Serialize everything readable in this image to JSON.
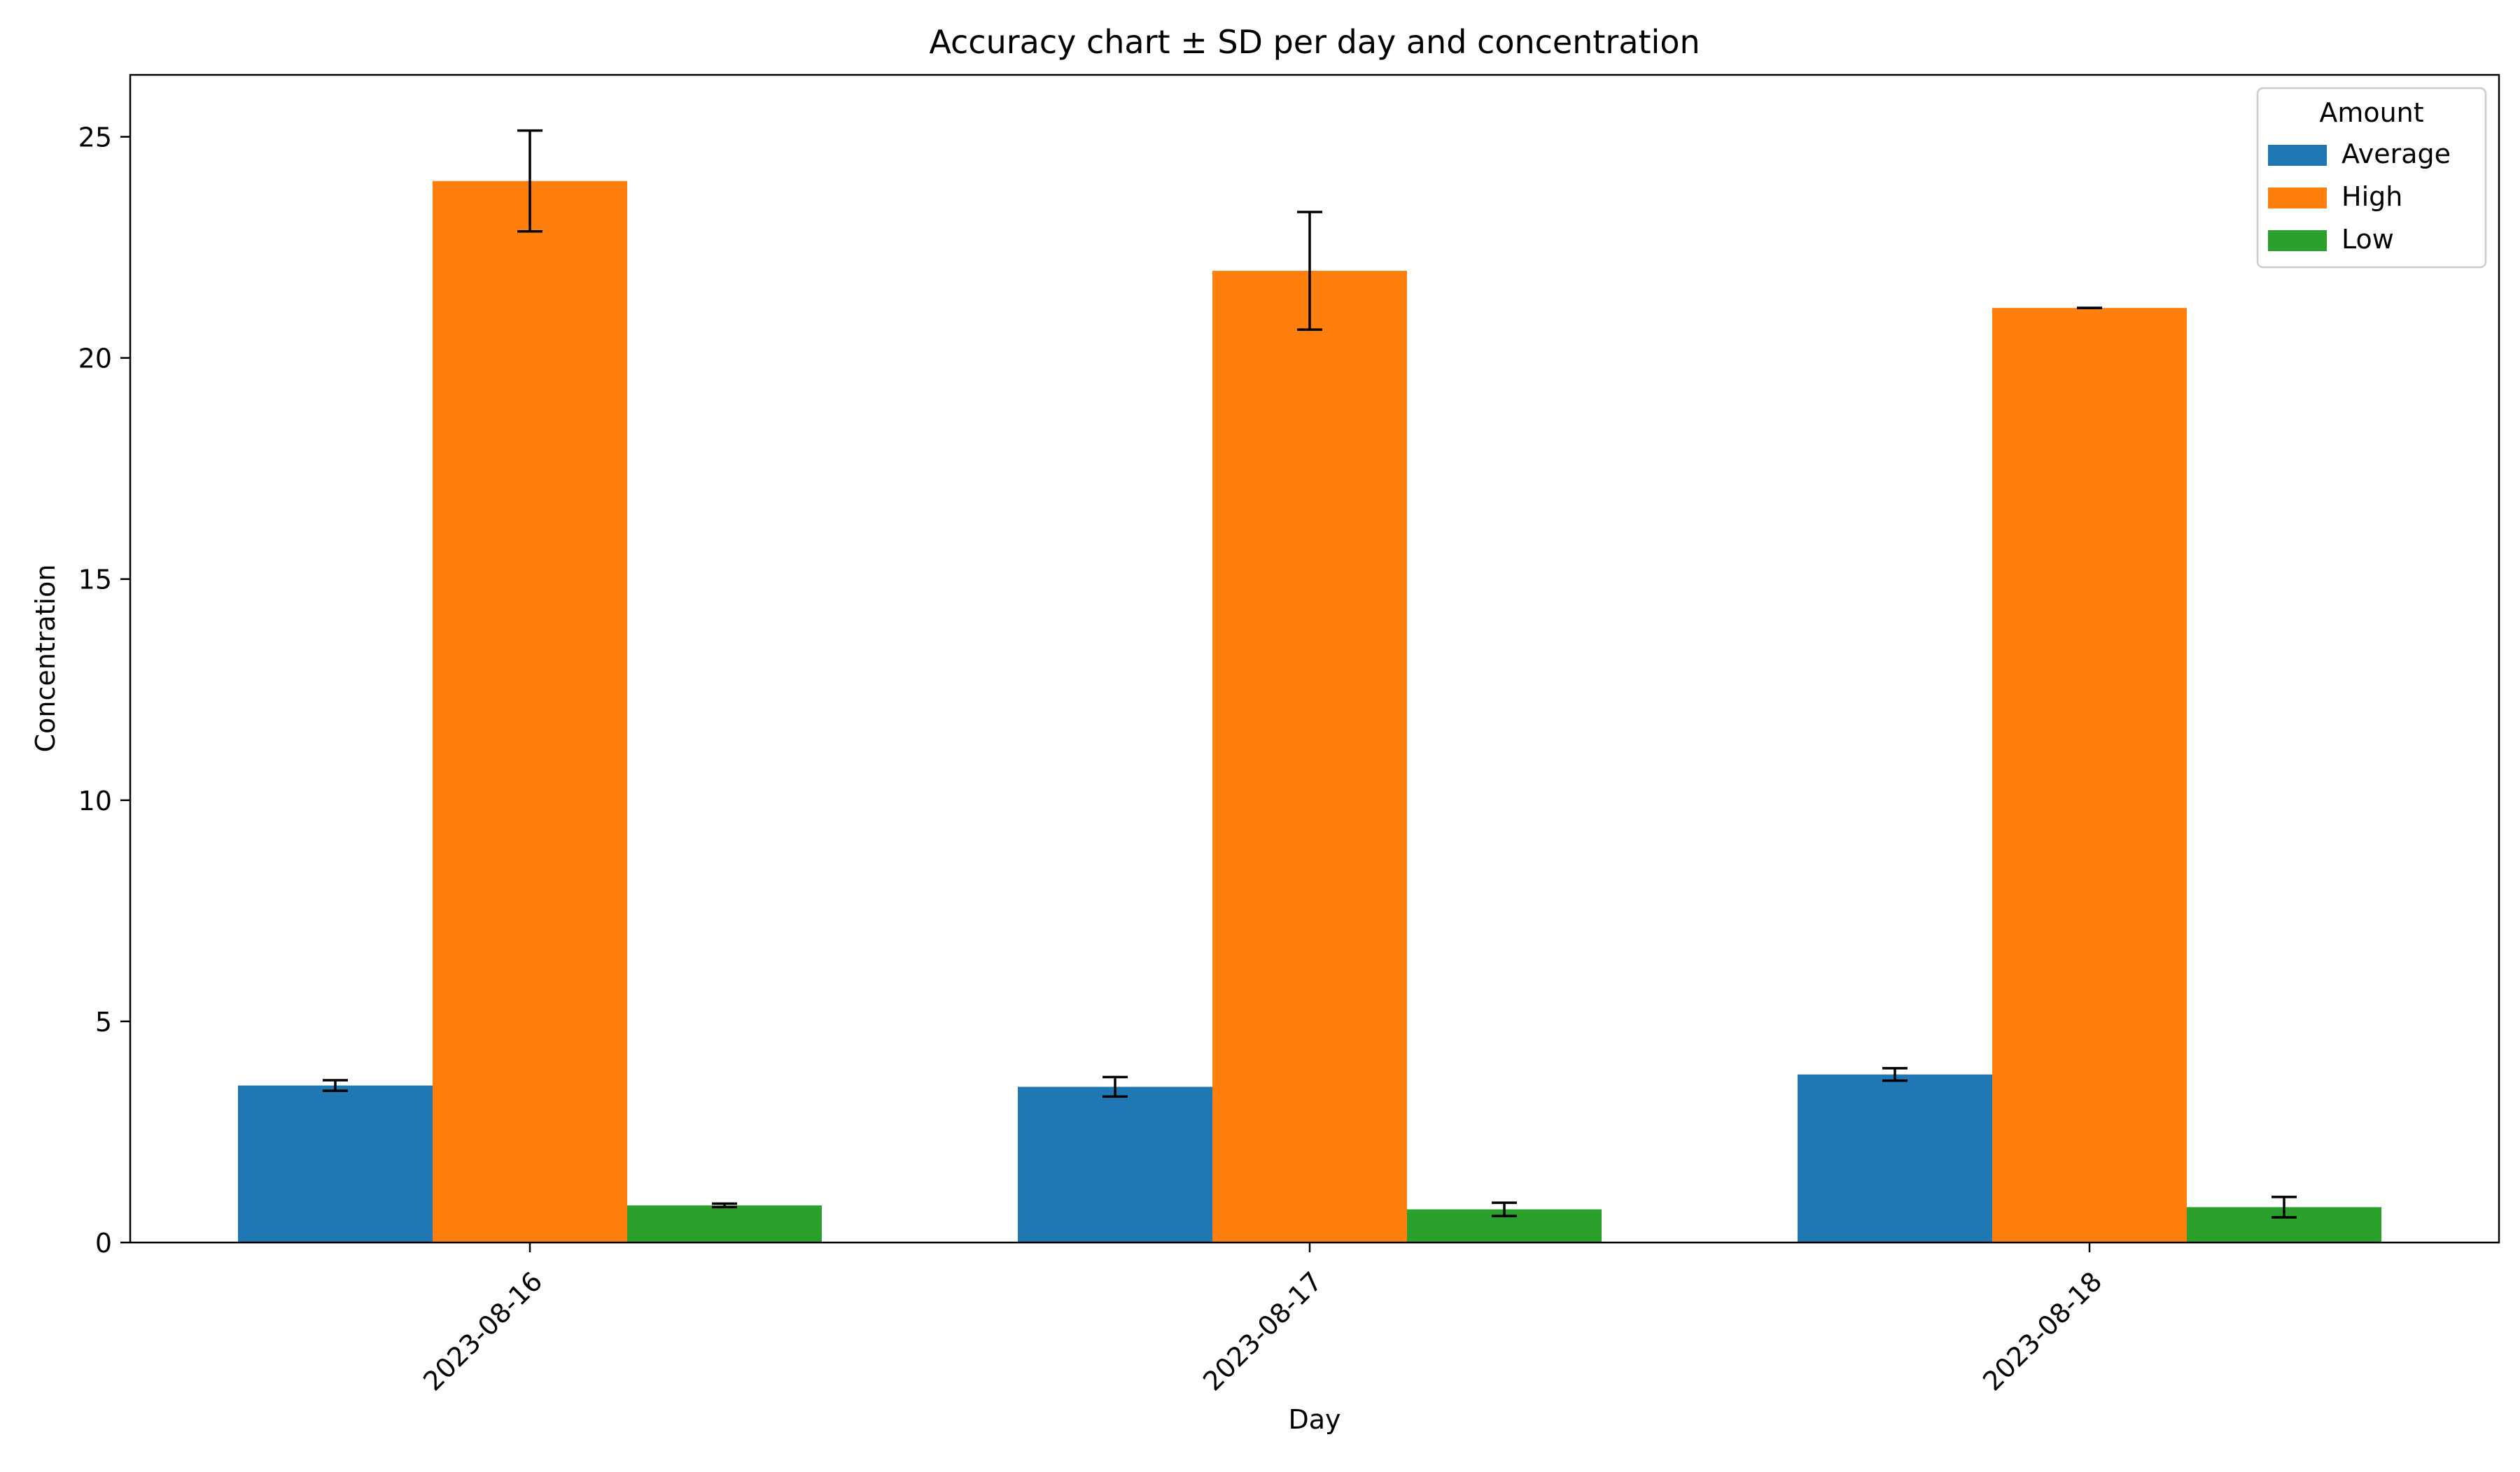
{
  "chart_data": {
    "type": "bar",
    "title": "Accuracy chart ± SD per day and concentration",
    "xlabel": "Day",
    "ylabel": "Concentration",
    "categories": [
      "2023-08-16",
      "2023-08-17",
      "2023-08-18"
    ],
    "ylim": [
      0,
      26.4
    ],
    "yticks": [
      0,
      5,
      10,
      15,
      20,
      25
    ],
    "grid": false,
    "legend": {
      "title": "Amount",
      "placement": "top-right"
    },
    "series": [
      {
        "name": "Average",
        "color": "#1f77b4",
        "values": [
          3.55,
          3.52,
          3.8
        ],
        "sd": [
          0.12,
          0.22,
          0.14
        ]
      },
      {
        "name": "High",
        "color": "#ff7f0e",
        "values": [
          24.0,
          21.97,
          21.13
        ],
        "sd": [
          1.14,
          1.33,
          0.0
        ]
      },
      {
        "name": "Low",
        "color": "#2ca02c",
        "values": [
          0.84,
          0.75,
          0.8
        ],
        "sd": [
          0.04,
          0.15,
          0.23
        ]
      }
    ]
  }
}
